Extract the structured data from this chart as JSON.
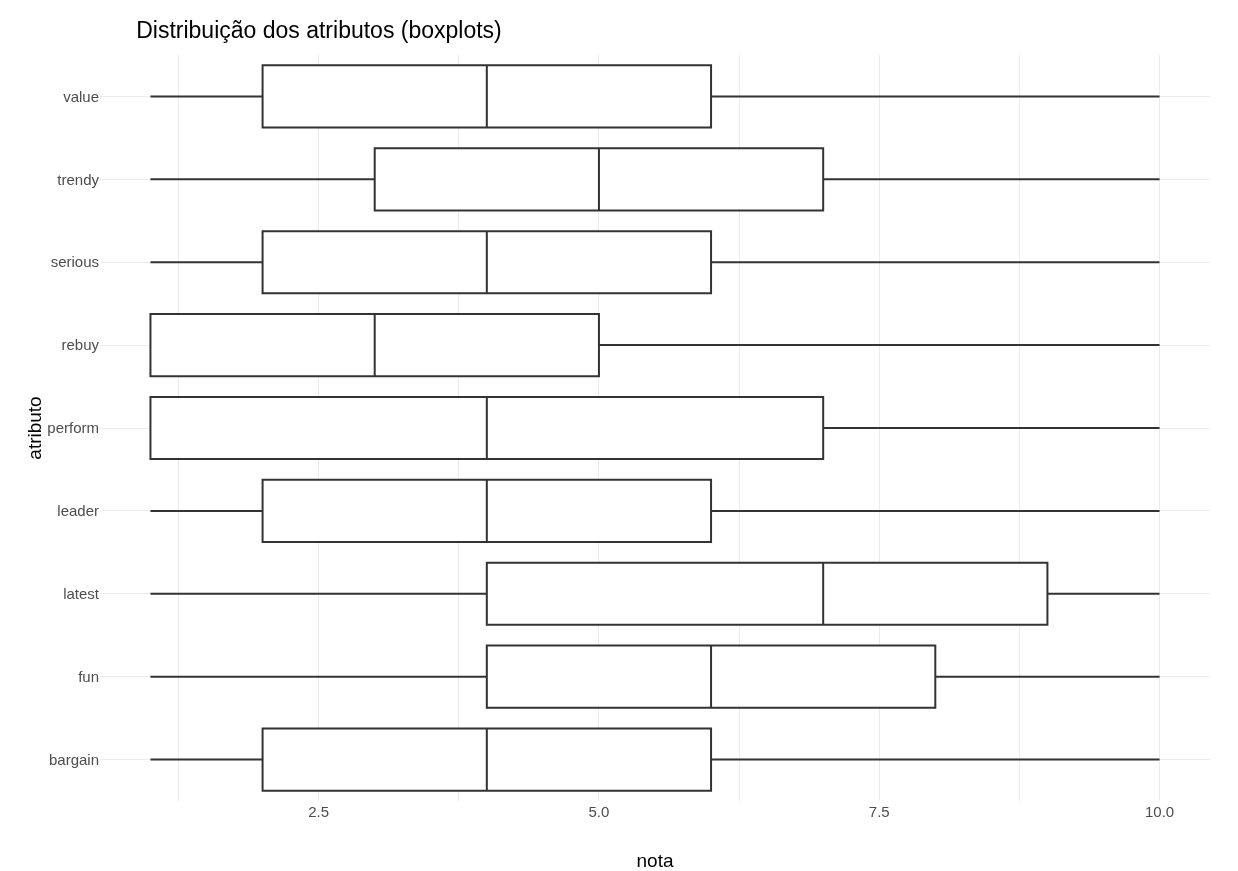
{
  "chart_data": {
    "type": "box",
    "title": "Distribuição dos atributos (boxplots)",
    "xlabel": "nota",
    "ylabel": "atributo",
    "orientation": "horizontal",
    "categories": [
      "value",
      "trendy",
      "serious",
      "rebuy",
      "perform",
      "leader",
      "latest",
      "fun",
      "bargain"
    ],
    "boxes": [
      {
        "low": 1,
        "q1": 2,
        "median": 4,
        "q3": 6,
        "high": 10
      },
      {
        "low": 1,
        "q1": 3,
        "median": 5,
        "q3": 7,
        "high": 10
      },
      {
        "low": 1,
        "q1": 2,
        "median": 4,
        "q3": 6,
        "high": 10
      },
      {
        "low": 1,
        "q1": 1,
        "median": 3,
        "q3": 5,
        "high": 10
      },
      {
        "low": 1,
        "q1": 1,
        "median": 4,
        "q3": 7,
        "high": 10
      },
      {
        "low": 1,
        "q1": 2,
        "median": 4,
        "q3": 6,
        "high": 10
      },
      {
        "low": 1,
        "q1": 4,
        "median": 7,
        "q3": 9,
        "high": 10
      },
      {
        "low": 1,
        "q1": 4,
        "median": 6,
        "q3": 8,
        "high": 10
      },
      {
        "low": 1,
        "q1": 2,
        "median": 4,
        "q3": 6,
        "high": 10
      }
    ],
    "color": "#333333",
    "xlim": [
      0.55,
      10.45
    ],
    "xticks": [
      {
        "value": 1.25,
        "label": null
      },
      {
        "value": 2.5,
        "label": "2.5"
      },
      {
        "value": 3.75,
        "label": null
      },
      {
        "value": 5,
        "label": "5.0"
      },
      {
        "value": 6.25,
        "label": null
      },
      {
        "value": 7.5,
        "label": "7.5"
      },
      {
        "value": 8.75,
        "label": null
      },
      {
        "value": 10,
        "label": "10.0"
      }
    ],
    "grid": true,
    "legend": false
  }
}
